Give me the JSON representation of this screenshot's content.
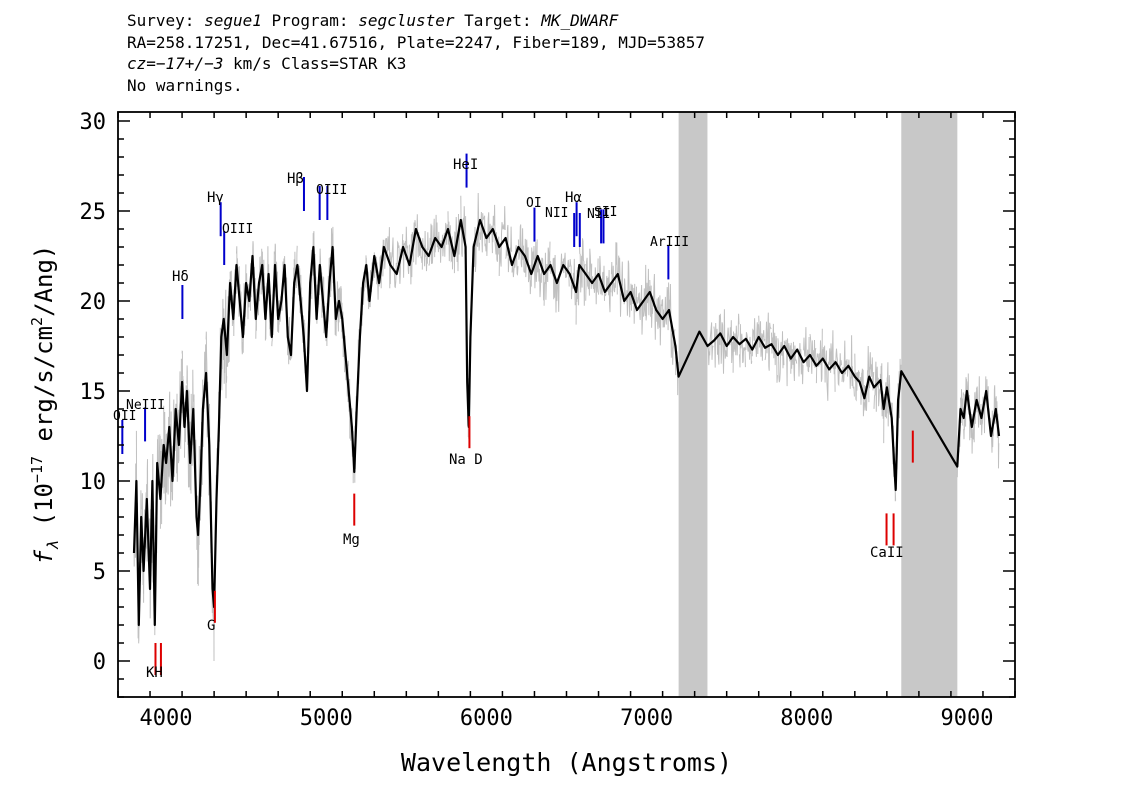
{
  "header": {
    "line1": {
      "survey_label": "Survey: ",
      "survey": "segue1",
      "program_label": " Program: ",
      "program": "segcluster",
      "target_label": " Target: ",
      "target": "MK_DWARF"
    },
    "line2": "RA=258.17251, Dec=41.67516, Plate=2247, Fiber=189, MJD=53857",
    "line3": {
      "cz_label": "cz=",
      "cz": "−17+/−3",
      "cz_unit": " km/s Class=STAR K3"
    },
    "line4": "No warnings."
  },
  "chart_data": {
    "type": "line",
    "xlabel": "Wavelength (Angstroms)",
    "ylabel_parts": {
      "f": "f",
      "lambda_sub": "λ",
      "unit_pre": " (10",
      "exp1": "−17",
      "unit_mid": " erg/s/cm",
      "exp2": "2",
      "unit_post": "/Ang)"
    },
    "xlim": [
      3700,
      9300
    ],
    "ylim": [
      -2,
      30.5
    ],
    "xticks": [
      4000,
      5000,
      6000,
      7000,
      8000,
      9000
    ],
    "yticks": [
      0,
      5,
      10,
      15,
      20,
      25,
      30
    ],
    "masked_regions": [
      [
        7200,
        7380
      ],
      [
        8590,
        8940
      ]
    ],
    "colors": {
      "flux": "#000000",
      "noise": "#c0c0c0",
      "emission": "#0000cc",
      "absorption": "#dd0000",
      "mask": "#c8c8c8"
    },
    "series": [
      {
        "role": "smoothed flux",
        "points": [
          [
            3800,
            6
          ],
          [
            3815,
            10
          ],
          [
            3830,
            2
          ],
          [
            3845,
            8
          ],
          [
            3860,
            5
          ],
          [
            3880,
            9
          ],
          [
            3900,
            4
          ],
          [
            3915,
            10
          ],
          [
            3930,
            2
          ],
          [
            3945,
            11
          ],
          [
            3965,
            9
          ],
          [
            3985,
            12
          ],
          [
            4000,
            11
          ],
          [
            4020,
            13
          ],
          [
            4040,
            10
          ],
          [
            4060,
            14
          ],
          [
            4080,
            12
          ],
          [
            4100,
            15.5
          ],
          [
            4115,
            13
          ],
          [
            4130,
            15
          ],
          [
            4150,
            11
          ],
          [
            4170,
            14
          ],
          [
            4190,
            8
          ],
          [
            4200,
            7
          ],
          [
            4215,
            10
          ],
          [
            4230,
            14
          ],
          [
            4250,
            16
          ],
          [
            4270,
            12
          ],
          [
            4290,
            4
          ],
          [
            4300,
            3
          ],
          [
            4315,
            9
          ],
          [
            4330,
            13
          ],
          [
            4345,
            18
          ],
          [
            4360,
            19
          ],
          [
            4380,
            17
          ],
          [
            4400,
            21
          ],
          [
            4420,
            19
          ],
          [
            4440,
            22
          ],
          [
            4460,
            20
          ],
          [
            4480,
            18
          ],
          [
            4500,
            21
          ],
          [
            4520,
            20
          ],
          [
            4540,
            22.5
          ],
          [
            4560,
            19
          ],
          [
            4580,
            21
          ],
          [
            4600,
            22
          ],
          [
            4620,
            19
          ],
          [
            4640,
            21.5
          ],
          [
            4660,
            18
          ],
          [
            4680,
            22
          ],
          [
            4700,
            19
          ],
          [
            4720,
            20
          ],
          [
            4740,
            22
          ],
          [
            4760,
            18
          ],
          [
            4780,
            17
          ],
          [
            4800,
            21
          ],
          [
            4820,
            22
          ],
          [
            4840,
            20
          ],
          [
            4860,
            18
          ],
          [
            4880,
            15
          ],
          [
            4900,
            21
          ],
          [
            4920,
            23
          ],
          [
            4940,
            19
          ],
          [
            4960,
            22
          ],
          [
            4980,
            20
          ],
          [
            5000,
            18
          ],
          [
            5020,
            21
          ],
          [
            5040,
            23
          ],
          [
            5060,
            19
          ],
          [
            5080,
            20
          ],
          [
            5100,
            19
          ],
          [
            5120,
            17
          ],
          [
            5140,
            15
          ],
          [
            5160,
            13
          ],
          [
            5175,
            10.5
          ],
          [
            5190,
            14
          ],
          [
            5210,
            18
          ],
          [
            5230,
            21
          ],
          [
            5250,
            22
          ],
          [
            5270,
            20
          ],
          [
            5300,
            22.5
          ],
          [
            5330,
            21
          ],
          [
            5360,
            23
          ],
          [
            5400,
            22
          ],
          [
            5440,
            21.5
          ],
          [
            5480,
            23
          ],
          [
            5520,
            22
          ],
          [
            5560,
            24
          ],
          [
            5600,
            23
          ],
          [
            5640,
            22.5
          ],
          [
            5680,
            23.5
          ],
          [
            5720,
            23
          ],
          [
            5760,
            24
          ],
          [
            5800,
            22.5
          ],
          [
            5840,
            24.5
          ],
          [
            5870,
            23
          ],
          [
            5880,
            15.5
          ],
          [
            5890,
            13
          ],
          [
            5900,
            18
          ],
          [
            5920,
            23
          ],
          [
            5960,
            24.5
          ],
          [
            6000,
            23.5
          ],
          [
            6040,
            24
          ],
          [
            6080,
            23
          ],
          [
            6120,
            23.5
          ],
          [
            6160,
            22
          ],
          [
            6200,
            23
          ],
          [
            6240,
            22.5
          ],
          [
            6280,
            21.5
          ],
          [
            6320,
            22.5
          ],
          [
            6360,
            21.5
          ],
          [
            6400,
            22
          ],
          [
            6440,
            21
          ],
          [
            6480,
            22
          ],
          [
            6520,
            21.5
          ],
          [
            6560,
            20.5
          ],
          [
            6580,
            22
          ],
          [
            6620,
            21.5
          ],
          [
            6660,
            21
          ],
          [
            6700,
            21.5
          ],
          [
            6740,
            20.5
          ],
          [
            6780,
            21
          ],
          [
            6820,
            21.5
          ],
          [
            6860,
            20
          ],
          [
            6900,
            20.5
          ],
          [
            6940,
            19.5
          ],
          [
            6980,
            20
          ],
          [
            7020,
            20.5
          ],
          [
            7060,
            19.5
          ],
          [
            7100,
            19
          ],
          [
            7140,
            19.5
          ],
          [
            7180,
            17.5
          ],
          [
            7200,
            15.8
          ],
          [
            7330,
            18.3
          ],
          [
            7380,
            17.5
          ],
          [
            7420,
            17.8
          ],
          [
            7460,
            18.2
          ],
          [
            7500,
            17.5
          ],
          [
            7540,
            18
          ],
          [
            7580,
            17.6
          ],
          [
            7620,
            17.9
          ],
          [
            7660,
            17.3
          ],
          [
            7700,
            18
          ],
          [
            7740,
            17.4
          ],
          [
            7780,
            17.6
          ],
          [
            7820,
            17
          ],
          [
            7860,
            17.5
          ],
          [
            7900,
            16.8
          ],
          [
            7940,
            17.3
          ],
          [
            7980,
            16.6
          ],
          [
            8020,
            17
          ],
          [
            8060,
            16.4
          ],
          [
            8100,
            16.8
          ],
          [
            8140,
            16.2
          ],
          [
            8180,
            16.6
          ],
          [
            8220,
            16
          ],
          [
            8260,
            16.4
          ],
          [
            8300,
            15.8
          ],
          [
            8330,
            15.5
          ],
          [
            8360,
            14.6
          ],
          [
            8390,
            15.8
          ],
          [
            8420,
            15.2
          ],
          [
            8460,
            15.6
          ],
          [
            8480,
            14
          ],
          [
            8500,
            15.2
          ],
          [
            8530,
            13.5
          ],
          [
            8545,
            11
          ],
          [
            8555,
            9.5
          ],
          [
            8570,
            14.5
          ],
          [
            8590,
            16.1
          ],
          [
            8940,
            10.8
          ],
          [
            8960,
            14
          ],
          [
            8980,
            13.5
          ],
          [
            9000,
            15
          ],
          [
            9030,
            13
          ],
          [
            9060,
            14.5
          ],
          [
            9090,
            13.5
          ],
          [
            9120,
            15
          ],
          [
            9150,
            12.5
          ],
          [
            9180,
            14
          ],
          [
            9200,
            12.5
          ]
        ]
      }
    ],
    "emission_lines": [
      {
        "label": "OII",
        "x": 3727,
        "y": 11.5
      },
      {
        "label": "NeIII",
        "x": 3869,
        "y": 12.2
      },
      {
        "label": "Hδ",
        "x": 4102,
        "y": 19
      },
      {
        "label": "Hγ",
        "x": 4341,
        "y": 23.6
      },
      {
        "label": "OIII",
        "x": 4363,
        "y": 22
      },
      {
        "label": "Hβ",
        "x": 4861,
        "y": 25
      },
      {
        "label": "OIII",
        "x": 4959,
        "y": 24.5
      },
      {
        "label": "OIII",
        "x": 5007,
        "y": 24.5
      },
      {
        "label": "HeI",
        "x": 5876,
        "y": 26.3
      },
      {
        "label": "OI",
        "x": 6300,
        "y": 23.3
      },
      {
        "label": "NII",
        "x": 6548,
        "y": 23
      },
      {
        "label": "Hα",
        "x": 6563,
        "y": 23.6
      },
      {
        "label": "NII",
        "x": 6583,
        "y": 23
      },
      {
        "label": "SII",
        "x": 6716,
        "y": 23.2
      },
      {
        "label": "SII",
        "x": 6731,
        "y": 23.2
      },
      {
        "label": "ArIII",
        "x": 7136,
        "y": 21.2
      }
    ],
    "absorption_lines": [
      {
        "label": "K",
        "x": 3934,
        "y": 1
      },
      {
        "label": "H",
        "x": 3968,
        "y": 1
      },
      {
        "label": "G",
        "x": 4305,
        "y": 3.9
      },
      {
        "label": "Mg",
        "x": 5175,
        "y": 9.3
      },
      {
        "label": "Na D",
        "x": 5894,
        "y": 13.6
      },
      {
        "label": "CaII",
        "x": 8498,
        "y": 8.2
      },
      {
        "label": "CaII",
        "x": 8542,
        "y": 8.2
      },
      {
        "label": "CaII",
        "x": 8662,
        "y": 12.8
      }
    ]
  },
  "annotation_labels": {
    "OII": "OII",
    "NeIII": "NeIII",
    "Hdelta": "Hδ",
    "Hgamma": "Hγ",
    "OIII_a": "OIII",
    "Hbeta": "Hβ",
    "OIII_b": "OIII",
    "HeI": "HeI",
    "OI": "OI",
    "NII_a": "NII",
    "Halpha": "Hα",
    "NII_b": "NII",
    "SII": "SII",
    "ArIII": "ArIII",
    "KH": "KH",
    "G": "G",
    "Mg": "Mg",
    "NaD": "Na D",
    "CaII": "CaII"
  }
}
